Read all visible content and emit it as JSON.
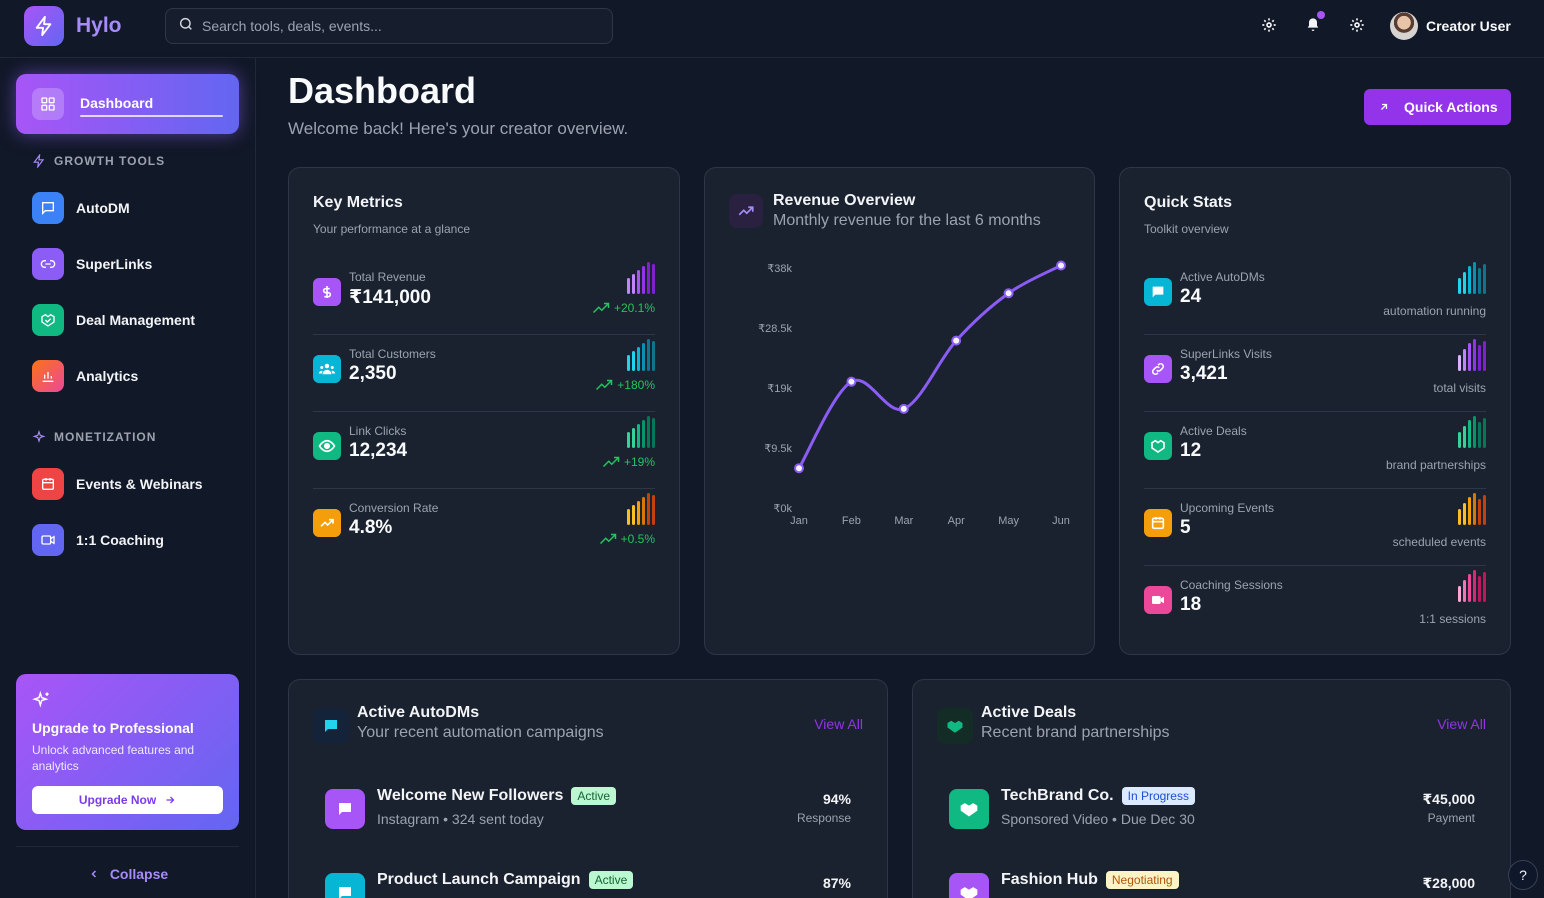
{
  "app": {
    "name": "Hylo"
  },
  "search": {
    "placeholder": "Search tools, deals, events..."
  },
  "user": {
    "name": "Creator User"
  },
  "sidebar": {
    "active": "Dashboard",
    "growth_title": "GROWTH TOOLS",
    "growth_items": [
      "AutoDM",
      "SuperLinks",
      "Deal Management",
      "Analytics"
    ],
    "monetization_title": "MONETIZATION",
    "monetization_items": [
      "Events & Webinars",
      "1:1 Coaching"
    ],
    "upgrade": {
      "title": "Upgrade to Professional",
      "text": "Unlock advanced features and analytics",
      "button": "Upgrade Now"
    },
    "collapse": "Collapse"
  },
  "page": {
    "title": "Dashboard",
    "subtitle": "Welcome back! Here's your creator overview.",
    "quick_actions": "Quick Actions"
  },
  "key_metrics": {
    "title": "Key Metrics",
    "subtitle": "Your performance at a glance",
    "rows": [
      {
        "label": "Total Revenue",
        "value": "₹141,000",
        "trend": "+20.1%",
        "color": "#a855f7"
      },
      {
        "label": "Total Customers",
        "value": "2,350",
        "trend": "+180%",
        "color": "#06b6d4"
      },
      {
        "label": "Link Clicks",
        "value": "12,234",
        "trend": "+19%",
        "color": "#10b981"
      },
      {
        "label": "Conversion Rate",
        "value": "4.8%",
        "trend": "+0.5%",
        "color": "#f59e0b"
      }
    ]
  },
  "revenue": {
    "title": "Revenue Overview",
    "subtitle": "Monthly revenue for the last 6 months"
  },
  "chart_data": {
    "type": "line",
    "categories": [
      "Jan",
      "Feb",
      "Mar",
      "Apr",
      "May",
      "Jun"
    ],
    "values": [
      6300,
      20000,
      15700,
      26500,
      34000,
      38400
    ],
    "y_ticks": [
      "₹38k",
      "₹28.5k",
      "₹19k",
      "₹9.5k",
      "₹0k"
    ],
    "ylim": [
      0,
      38000
    ],
    "color": "#8b5cf6",
    "grid": false
  },
  "quick_stats": {
    "title": "Quick Stats",
    "subtitle": "Toolkit overview",
    "rows": [
      {
        "label": "Active AutoDMs",
        "value": "24",
        "note": "automation running",
        "color": "#06b6d4"
      },
      {
        "label": "SuperLinks Visits",
        "value": "3,421",
        "note": "total visits",
        "color": "#a855f7"
      },
      {
        "label": "Active Deals",
        "value": "12",
        "note": "brand partnerships",
        "color": "#10b981"
      },
      {
        "label": "Upcoming Events",
        "value": "5",
        "note": "scheduled events",
        "color": "#f59e0b"
      },
      {
        "label": "Coaching Sessions",
        "value": "18",
        "note": "1:1 sessions",
        "color": "#ec4899"
      }
    ]
  },
  "autodms": {
    "title": "Active AutoDMs",
    "subtitle": "Your recent automation campaigns",
    "view_all": "View All",
    "items": [
      {
        "name": "Welcome New Followers",
        "status": "Active",
        "meta": "Instagram • 324 sent today",
        "value": "94%",
        "value_label": "Response"
      },
      {
        "name": "Product Launch Campaign",
        "status": "Active",
        "meta": "",
        "value": "87%",
        "value_label": ""
      }
    ]
  },
  "deals": {
    "title": "Active Deals",
    "subtitle": "Recent brand partnerships",
    "view_all": "View All",
    "items": [
      {
        "name": "TechBrand Co.",
        "status": "In Progress",
        "meta": "Sponsored Video • Due Dec 30",
        "value": "₹45,000",
        "value_label": "Payment"
      },
      {
        "name": "Fashion Hub",
        "status": "Negotiating",
        "meta": "",
        "value": "₹28,000",
        "value_label": ""
      }
    ]
  },
  "help": "?"
}
